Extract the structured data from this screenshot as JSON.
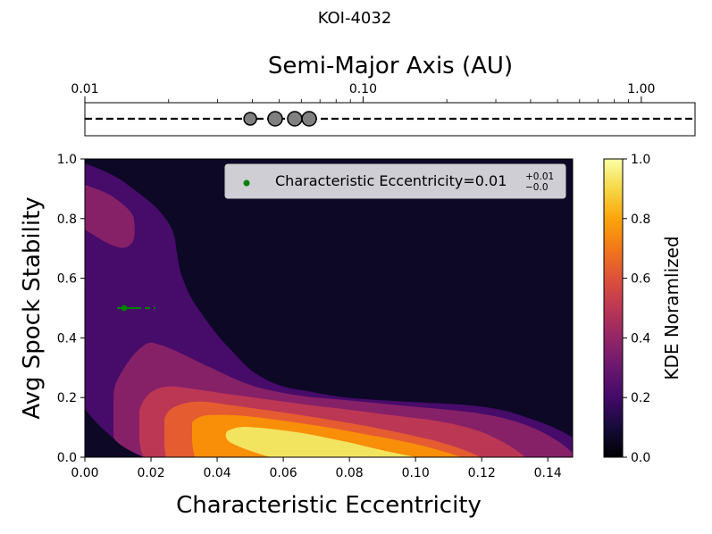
{
  "chart_data": [
    {
      "type": "scatter",
      "title": "KOI-4032",
      "xlabel": "Semi-Major Axis (AU)",
      "xscale": "log",
      "xlim": [
        0.01,
        1.56
      ],
      "xticks": [
        0.01,
        0.1,
        1.0
      ],
      "xtick_labels": [
        "0.01",
        "0.10",
        "1.00"
      ],
      "points": [
        0.0393,
        0.0483,
        0.0568,
        0.064
      ],
      "marker_color": "#808080",
      "line_style": "dashed"
    },
    {
      "type": "heatmap",
      "subtype": "filled-contour-kde",
      "xlabel": "Characteristic Eccentricity",
      "ylabel": "Avg Spock Stability",
      "xlim": [
        0.0,
        0.1475
      ],
      "ylim": [
        0.0,
        1.0
      ],
      "xticks": [
        0.0,
        0.02,
        0.04,
        0.06,
        0.08,
        0.1,
        0.12,
        0.14
      ],
      "xtick_labels": [
        "0.00",
        "0.02",
        "0.04",
        "0.06",
        "0.08",
        "0.10",
        "0.12",
        "0.14"
      ],
      "yticks": [
        0.0,
        0.2,
        0.4,
        0.6,
        0.8,
        1.0
      ],
      "ytick_labels": [
        "0.0",
        "0.2",
        "0.4",
        "0.6",
        "0.8",
        "1.0"
      ],
      "contour_levels": [
        0.0,
        0.167,
        0.333,
        0.5,
        0.667,
        0.833,
        1.0
      ],
      "contour_colors": [
        "#0c0826",
        "#470b6a",
        "#862168",
        "#bc3754",
        "#e55c30",
        "#f98e09",
        "#f3e45f"
      ],
      "marker": {
        "x": 0.012,
        "y": 0.5,
        "x_err_low": 0.003,
        "x_err_high": 0.009,
        "color": "#008000"
      },
      "legend": {
        "label": "Characteristic Eccentricity=0.01",
        "sup": "+0.01",
        "sub": "−0.0",
        "location": "top-right"
      },
      "colorbar": {
        "label": "KDE Noramlized",
        "range": [
          0.0,
          1.0
        ],
        "ticks": [
          "0.0",
          "0.2",
          "0.4",
          "0.6",
          "0.8",
          "1.0"
        ],
        "colormap": "inferno"
      }
    }
  ]
}
